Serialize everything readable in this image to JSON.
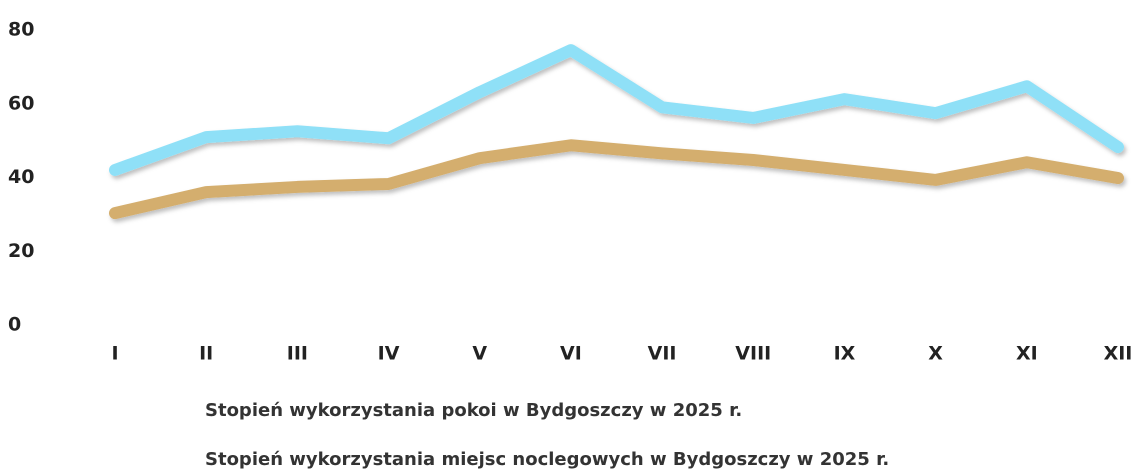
{
  "chart_data": {
    "type": "line",
    "categories": [
      "I",
      "II",
      "III",
      "IV",
      "V",
      "VI",
      "VII",
      "VIII",
      "IX",
      "X",
      "XI",
      "XII"
    ],
    "series": [
      {
        "name": "Stopień wykorzystania pokoi w Bydgoszczy w 2025 r.",
        "color": "#8fe0f7",
        "values": [
          41.5,
          50.4,
          52.0,
          50.1,
          62.6,
          74.0,
          58.5,
          55.6,
          60.7,
          56.9,
          64.2,
          47.7
        ]
      },
      {
        "name": "Stopień wykorzystania miejsc noclegowych w Bydgoszczy w 2025 r.",
        "color": "#d4ae6e",
        "values": [
          29.8,
          35.5,
          36.9,
          37.7,
          44.7,
          48.2,
          46.0,
          44.2,
          41.5,
          38.8,
          43.6,
          39.3
        ]
      }
    ],
    "ylim": [
      0,
      80
    ],
    "yticks": [
      0,
      20,
      40,
      60,
      80
    ],
    "grid": false
  }
}
